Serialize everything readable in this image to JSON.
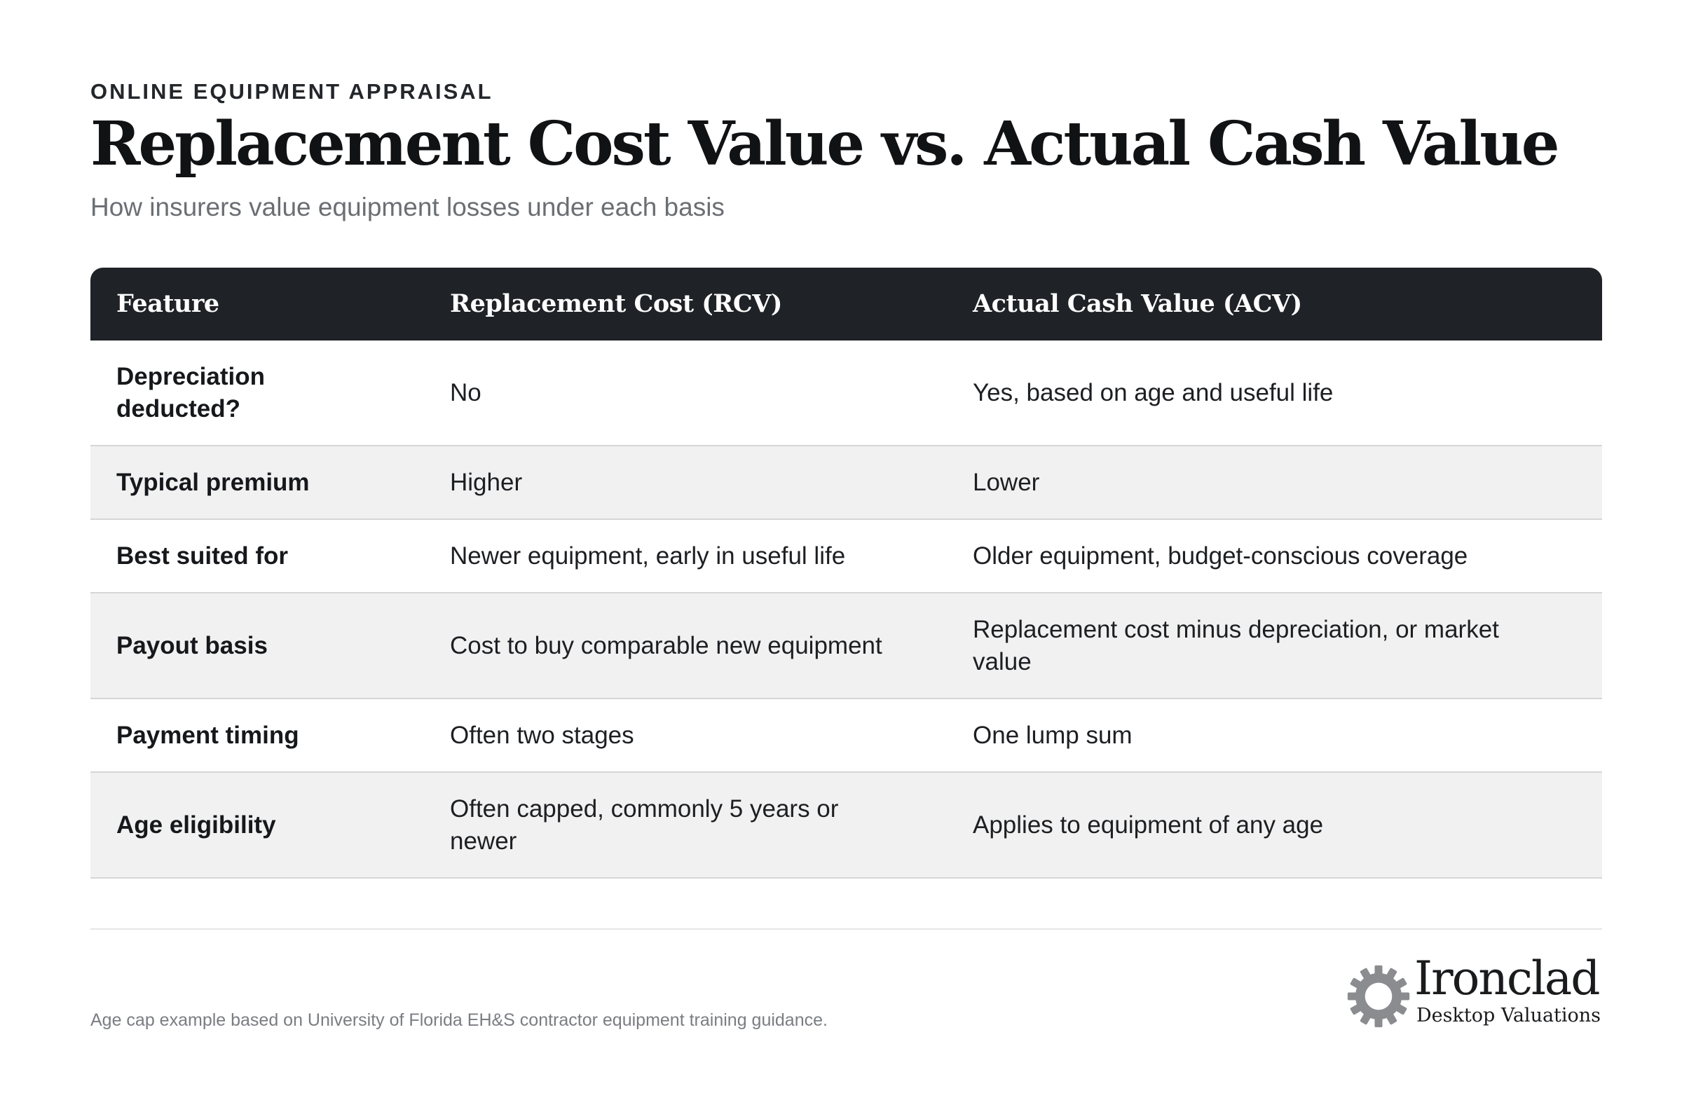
{
  "header": {
    "eyebrow": "ONLINE EQUIPMENT APPRAISAL",
    "title": "Replacement Cost Value vs. Actual Cash Value",
    "subtitle": "How insurers value equipment losses under each basis"
  },
  "table": {
    "columns": [
      "Feature",
      "Replacement Cost (RCV)",
      "Actual Cash Value (ACV)"
    ],
    "rows": [
      {
        "feature": "Depreciation deducted?",
        "rcv": "No",
        "acv": "Yes, based on age and useful life"
      },
      {
        "feature": "Typical premium",
        "rcv": "Higher",
        "acv": "Lower"
      },
      {
        "feature": "Best suited for",
        "rcv": "Newer equipment, early in useful life",
        "acv": "Older equipment, budget-conscious coverage"
      },
      {
        "feature": "Payout basis",
        "rcv": "Cost to buy comparable new equipment",
        "acv": "Replacement cost minus depreciation, or market value"
      },
      {
        "feature": "Payment timing",
        "rcv": "Often two stages",
        "acv": "One lump sum"
      },
      {
        "feature": "Age eligibility",
        "rcv": "Often capped, commonly 5 years or newer",
        "acv": "Applies to equipment of any age"
      }
    ]
  },
  "footer": {
    "note": "Age cap example based on University of Florida EH&S contractor equipment training guidance.",
    "logo_name": "Ironclad",
    "logo_tagline": "Desktop Valuations",
    "logo_icon": "gear-icon"
  },
  "colors": {
    "header_bg": "#1f2226",
    "row_alt_bg": "#f1f1f1",
    "text": "#1d1f22",
    "muted": "#6b6e73",
    "gear": "#8a8c8f"
  }
}
